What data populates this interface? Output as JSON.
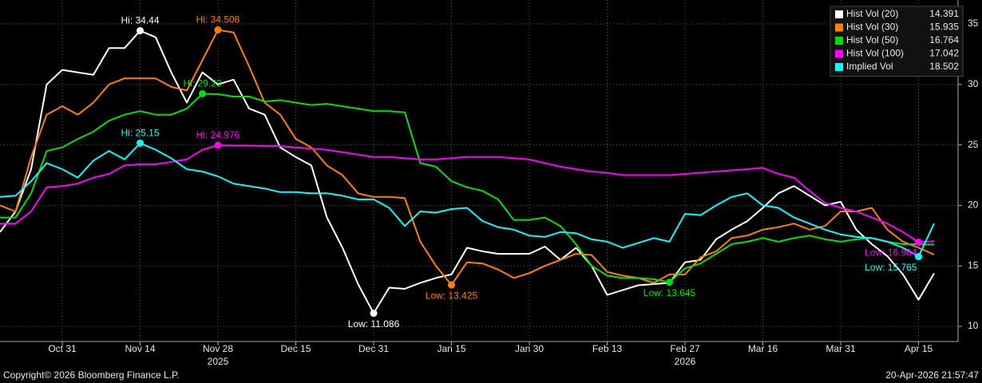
{
  "chart_data": {
    "type": "line",
    "categories": [
      null,
      null,
      null,
      null,
      "Oct 31",
      null,
      null,
      null,
      null,
      "Nov 14",
      null,
      null,
      null,
      null,
      "Nov 28",
      null,
      null,
      null,
      null,
      "Dec 15",
      null,
      null,
      null,
      null,
      "Dec 31",
      null,
      null,
      null,
      null,
      "Jan 15",
      null,
      null,
      null,
      null,
      "Jan 30",
      null,
      null,
      null,
      null,
      "Feb 13",
      null,
      null,
      null,
      null,
      "Feb 27",
      null,
      null,
      null,
      null,
      "Mar 16",
      null,
      null,
      null,
      null,
      "Mar 31",
      null,
      null,
      null,
      null,
      "Apr 15",
      null
    ],
    "year_labels": [
      {
        "text": "2025",
        "at": "Nov 28"
      },
      {
        "text": "2026",
        "at": "Feb 27"
      }
    ],
    "series": [
      {
        "name": "Hist Vol (20)",
        "color": "#ffffff",
        "values": [
          17.8,
          19.5,
          23,
          30,
          31.2,
          31,
          30.8,
          33,
          33,
          34.44,
          33.9,
          31,
          28.5,
          31,
          30,
          30.4,
          28,
          27.5,
          24.8,
          24,
          23.3,
          19,
          16.5,
          13.5,
          11.086,
          13.2,
          13.1,
          13.6,
          14,
          14.3,
          16.5,
          16.2,
          16,
          16,
          16,
          16.6,
          15.5,
          16.5,
          15,
          12.6,
          13,
          13.4,
          13.5,
          13.6,
          15.3,
          15.5,
          17.2,
          18,
          18.7,
          19.8,
          21,
          21.6,
          20.8,
          20,
          20.3,
          18,
          16.8,
          15.8,
          14.3,
          12.2,
          14.391
        ]
      },
      {
        "name": "Hist Vol (30)",
        "color": "#ff8000",
        "values": [
          20,
          19.5,
          24,
          27.5,
          28.2,
          27.5,
          28.5,
          30,
          30.5,
          30.5,
          30.5,
          29.8,
          29.5,
          32,
          34.508,
          34.3,
          31.5,
          28.5,
          27.5,
          25.5,
          24.8,
          23.3,
          22.5,
          21,
          20.7,
          20.7,
          20.6,
          17,
          15,
          13.425,
          15.3,
          15.2,
          14.7,
          14,
          14.4,
          15,
          15.5,
          16,
          15.9,
          14.5,
          14.2,
          14,
          13.6,
          14.3,
          14.3,
          15.7,
          16.2,
          17.3,
          17.5,
          18,
          18.2,
          18.5,
          18,
          18.3,
          19.5,
          19.5,
          19.8,
          18,
          17,
          16.5,
          15.935
        ]
      },
      {
        "name": "Hist Vol (50)",
        "color": "#00e000",
        "values": [
          19,
          19,
          21,
          24.5,
          24.8,
          25.5,
          26.1,
          27,
          27.5,
          27.8,
          27.5,
          27.5,
          28,
          29.23,
          29.2,
          29,
          29,
          28.6,
          28.7,
          28.5,
          28.3,
          28.4,
          28.2,
          28,
          27.8,
          27.8,
          27.7,
          23.5,
          23.2,
          22,
          21.5,
          21.2,
          20.5,
          18.8,
          18.8,
          19,
          18.3,
          16.8,
          15,
          14.2,
          14,
          14,
          13.9,
          13.645,
          14.8,
          15.2,
          16,
          16.8,
          17,
          17.3,
          17,
          17.3,
          17.5,
          17.2,
          17,
          17.2,
          17.3,
          17,
          16.8,
          16.8,
          16.764
        ]
      },
      {
        "name": "Hist Vol (100)",
        "color": "#ff00ff",
        "values": [
          18.5,
          18.5,
          19.5,
          21.5,
          21.6,
          21.8,
          22.3,
          22.6,
          23.3,
          23.4,
          23.4,
          23.6,
          23.8,
          24.6,
          24.976,
          24.95,
          24.95,
          24.9,
          24.9,
          24.8,
          24.7,
          24.6,
          24.4,
          24.2,
          24,
          24,
          23.9,
          23.8,
          23.8,
          23.9,
          24,
          24,
          24,
          23.9,
          23.8,
          23.5,
          23.2,
          23,
          22.8,
          22.7,
          22.5,
          22.5,
          22.5,
          22.5,
          22.6,
          22.7,
          22.8,
          22.9,
          23,
          23.1,
          22.6,
          22.3,
          21.2,
          20.2,
          19.8,
          19.5,
          19,
          18.5,
          17.8,
          16.964,
          17.042
        ]
      },
      {
        "name": "Implied Vol",
        "color": "#00ffff",
        "values": [
          20.7,
          20.8,
          22,
          23.5,
          23,
          22.3,
          23.7,
          24.5,
          23.8,
          25.15,
          24.6,
          23.9,
          23,
          22.8,
          22.4,
          21.8,
          21.6,
          21.4,
          21.1,
          21.1,
          21,
          21,
          20.8,
          20.5,
          20.5,
          19.8,
          18.3,
          19.5,
          19.4,
          19.7,
          19.8,
          18.7,
          18.2,
          18,
          17.5,
          17.4,
          17.8,
          17.7,
          17.2,
          17,
          16.5,
          16.9,
          17.3,
          17,
          19.3,
          19.2,
          20,
          20.7,
          21,
          20,
          19.8,
          19,
          18.5,
          18,
          17.6,
          17.4,
          17.3,
          17,
          16.5,
          15.765,
          18.502
        ]
      }
    ],
    "annotations": [
      {
        "series": 0,
        "kind": "max",
        "text": "Hi: 34.44"
      },
      {
        "series": 1,
        "kind": "max",
        "text": "Hi: 34.508"
      },
      {
        "series": 2,
        "kind": "max",
        "text": "Hi: 29.23"
      },
      {
        "series": 4,
        "kind": "max",
        "text": "Hi: 25.15"
      },
      {
        "series": 3,
        "kind": "max",
        "text": "Hi: 24.976"
      },
      {
        "series": 0,
        "kind": "min",
        "text": "Low: 11.086"
      },
      {
        "series": 1,
        "kind": "min",
        "text": "Low: 13.425"
      },
      {
        "series": 2,
        "kind": "min",
        "text": "Low: 13.645"
      },
      {
        "series": 3,
        "kind": "min",
        "text": "Low: 16.964"
      },
      {
        "series": 4,
        "kind": "min",
        "text": "Low: 15.765"
      }
    ],
    "ylim": [
      8.75,
      36.98
    ],
    "yticks": [
      10,
      15,
      20,
      25,
      30,
      35
    ],
    "grid": true,
    "legend": "top-right",
    "footer_left": "Copyright© 2026 Bloomberg Finance L.P.",
    "footer_right": "20-Apr-2026 21:57:47"
  }
}
